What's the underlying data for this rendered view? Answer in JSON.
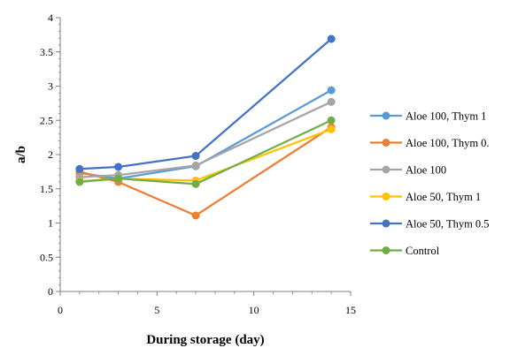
{
  "chart_data": {
    "type": "line",
    "title": "",
    "xlabel": "During storage (day)",
    "ylabel": "a/b",
    "xlim": [
      0,
      15
    ],
    "ylim": [
      0,
      4
    ],
    "x_ticks": [
      "0",
      "5",
      "10",
      "15"
    ],
    "y_ticks": [
      "0",
      "0.5",
      "1",
      "1.5",
      "2",
      "2.5",
      "3",
      "3.5",
      "4"
    ],
    "x_tick_values": [
      0,
      5,
      10,
      15
    ],
    "y_tick_values": [
      0,
      0.5,
      1,
      1.5,
      2,
      2.5,
      3,
      3.5,
      4
    ],
    "grid": false,
    "legend_position": "right",
    "x": [
      1,
      3,
      7,
      14
    ],
    "series": [
      {
        "name": "Aloe 100, Thym 1",
        "color": "#5b9bd5",
        "values": [
          1.73,
          1.65,
          1.83,
          2.94
        ]
      },
      {
        "name": "Aloe 100, Thym 0.",
        "color": "#ed7d31",
        "values": [
          1.75,
          1.6,
          1.11,
          2.4
        ]
      },
      {
        "name": "Aloe 100",
        "color": "#a5a5a5",
        "values": [
          1.67,
          1.7,
          1.84,
          2.77
        ]
      },
      {
        "name": "Aloe 50, Thym 1",
        "color": "#ffc000",
        "values": [
          1.61,
          1.65,
          1.62,
          2.37
        ]
      },
      {
        "name": "Aloe 50, Thym 0.5",
        "color": "#4472c4",
        "values": [
          1.79,
          1.82,
          1.98,
          3.69
        ]
      },
      {
        "name": "Control",
        "color": "#70ad47",
        "values": [
          1.6,
          1.65,
          1.57,
          2.5
        ]
      }
    ]
  }
}
